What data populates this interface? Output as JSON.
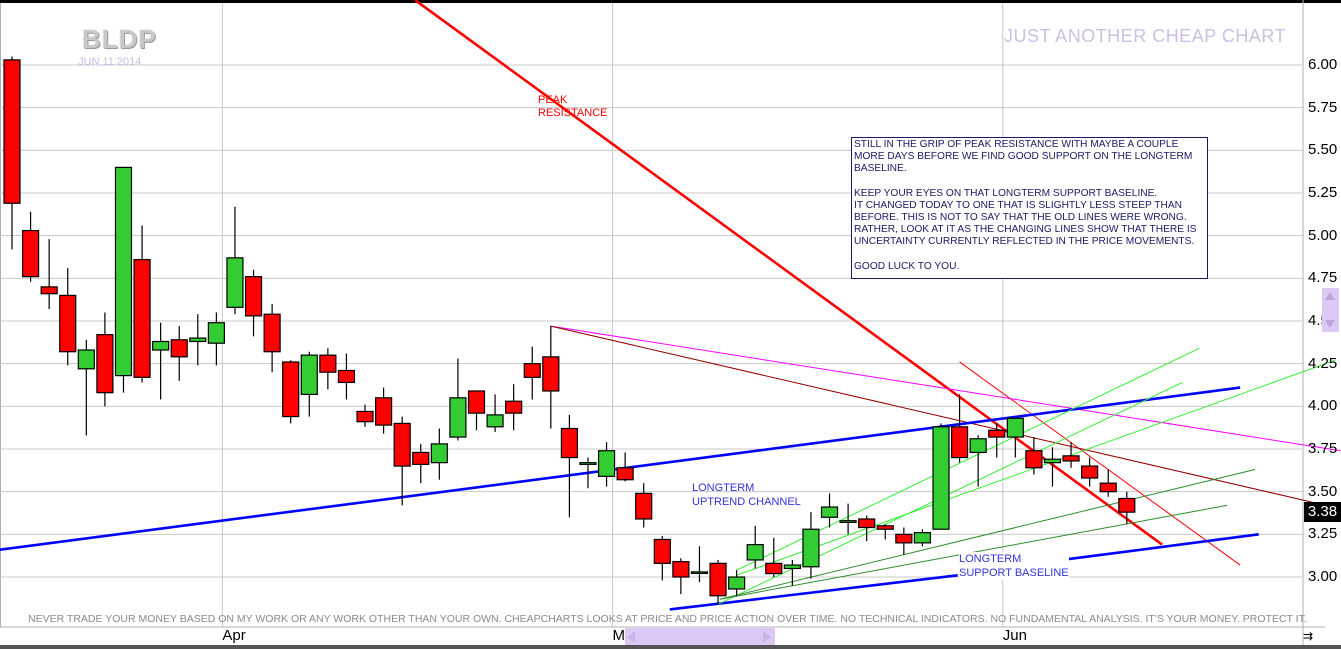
{
  "header": {
    "ticker": "BLDP",
    "date": "JUN 11 2014",
    "brand": "JUST ANOTHER CHEAP CHART"
  },
  "annotations": {
    "peak_resistance": "PEAK\nRESISTANCE",
    "uptrend_channel": "LONGTERM\nUPTREND CHANNEL",
    "support_baseline": "LONGTERM\nSUPPORT BASELINE",
    "note": [
      "STILL IN THE GRIP OF PEAK RESISTANCE WITH MAYBE A COUPLE MORE DAYS BEFORE WE FIND GOOD SUPPORT ON THE LONGTERM BASELINE.",
      "KEEP YOUR EYES ON THAT LONGTERM SUPPORT BASELINE.",
      "IT CHANGED TODAY TO ONE THAT IS SLIGHTLY LESS STEEP THAN BEFORE. THIS IS NOT TO SAY THAT THE OLD LINES WERE WRONG. RATHER, LOOK AT IT AS THE CHANGING LINES SHOW THAT THERE IS UNCERTAINTY CURRENTLY REFLECTED IN THE PRICE MOVEMENTS.",
      "GOOD LUCK TO YOU."
    ],
    "disclaimer": "NEVER TRADE YOUR MONEY BASED ON MY WORK OR ANY WORK OTHER THAN YOUR OWN. CHEAPCHARTS LOOKS AT PRICE AND PRICE ACTION OVER TIME. NO TECHNICAL INDICATORS. NO FUNDAMENTAL ANALYSIS. IT'S YOUR MONEY. PROTECT IT."
  },
  "chart_data": {
    "type": "candlestick",
    "ylim": [
      2.8,
      6.38
    ],
    "y_ticks": [
      "6.00",
      "5.75",
      "5.50",
      "5.25",
      "5.00",
      "4.75",
      "4.50",
      "4.25",
      "4.00",
      "3.75",
      "3.50",
      "3.25",
      "3.00"
    ],
    "x_ticks": [
      {
        "label": "Apr",
        "bar": 11
      },
      {
        "label": "May",
        "bar": 32
      },
      {
        "label": "Jun",
        "bar": 53
      }
    ],
    "last_price": "3.38",
    "grid": true,
    "colors": {
      "up": "#33cc33",
      "down": "#ff0000",
      "grid": "#c8c8c8"
    },
    "candles_ohlc": [
      [
        6.03,
        6.05,
        4.92,
        5.19
      ],
      [
        5.03,
        5.14,
        4.73,
        4.76
      ],
      [
        4.7,
        4.98,
        4.57,
        4.66
      ],
      [
        4.65,
        4.81,
        4.24,
        4.32
      ],
      [
        4.22,
        4.39,
        3.83,
        4.33
      ],
      [
        4.42,
        4.55,
        4.0,
        4.08
      ],
      [
        4.18,
        5.4,
        4.08,
        5.4
      ],
      [
        4.86,
        5.06,
        4.14,
        4.17
      ],
      [
        4.33,
        4.49,
        4.04,
        4.38
      ],
      [
        4.39,
        4.47,
        4.15,
        4.29
      ],
      [
        4.38,
        4.54,
        4.24,
        4.4
      ],
      [
        4.37,
        4.55,
        4.24,
        4.49
      ],
      [
        4.58,
        5.17,
        4.54,
        4.87
      ],
      [
        4.76,
        4.8,
        4.41,
        4.53
      ],
      [
        4.54,
        4.6,
        4.2,
        4.32
      ],
      [
        4.26,
        4.27,
        3.9,
        3.94
      ],
      [
        4.07,
        4.32,
        3.94,
        4.3
      ],
      [
        4.3,
        4.34,
        4.1,
        4.2
      ],
      [
        4.21,
        4.31,
        4.04,
        4.14
      ],
      [
        3.97,
        4.01,
        3.88,
        3.91
      ],
      [
        4.05,
        4.11,
        3.84,
        3.89
      ],
      [
        3.9,
        3.94,
        3.42,
        3.65
      ],
      [
        3.73,
        3.78,
        3.55,
        3.66
      ],
      [
        3.67,
        3.87,
        3.57,
        3.78
      ],
      [
        3.82,
        4.28,
        3.8,
        4.05
      ],
      [
        4.09,
        4.09,
        3.86,
        3.96
      ],
      [
        3.88,
        4.07,
        3.85,
        3.95
      ],
      [
        4.03,
        4.13,
        3.86,
        3.96
      ],
      [
        4.25,
        4.35,
        4.04,
        4.17
      ],
      [
        4.29,
        4.47,
        3.87,
        4.09
      ],
      [
        3.87,
        3.95,
        3.35,
        3.7
      ],
      [
        3.66,
        3.7,
        3.52,
        3.67
      ],
      [
        3.59,
        3.79,
        3.53,
        3.74
      ],
      [
        3.64,
        3.73,
        3.56,
        3.57
      ],
      [
        3.49,
        3.55,
        3.29,
        3.34
      ],
      [
        3.22,
        3.24,
        2.98,
        3.08
      ],
      [
        3.09,
        3.11,
        2.9,
        3.0
      ],
      [
        3.03,
        3.18,
        2.97,
        3.03
      ],
      [
        3.08,
        3.1,
        2.84,
        2.89
      ],
      [
        2.93,
        3.04,
        2.89,
        3.0
      ],
      [
        3.1,
        3.3,
        3.05,
        3.19
      ],
      [
        3.08,
        3.23,
        3.0,
        3.02
      ],
      [
        3.05,
        3.1,
        2.95,
        3.07
      ],
      [
        3.06,
        3.38,
        2.99,
        3.28
      ],
      [
        3.35,
        3.49,
        3.29,
        3.41
      ],
      [
        3.32,
        3.43,
        3.25,
        3.33
      ],
      [
        3.34,
        3.36,
        3.21,
        3.29
      ],
      [
        3.3,
        3.31,
        3.22,
        3.28
      ],
      [
        3.25,
        3.29,
        3.13,
        3.2
      ],
      [
        3.2,
        3.28,
        3.18,
        3.26
      ],
      [
        3.28,
        3.9,
        3.28,
        3.88
      ],
      [
        3.88,
        4.07,
        3.67,
        3.7
      ],
      [
        3.73,
        3.83,
        3.53,
        3.81
      ],
      [
        3.86,
        3.9,
        3.7,
        3.82
      ],
      [
        3.82,
        3.93,
        3.7,
        3.93
      ],
      [
        3.74,
        3.82,
        3.6,
        3.64
      ],
      [
        3.67,
        3.76,
        3.53,
        3.69
      ],
      [
        3.71,
        3.79,
        3.64,
        3.68
      ],
      [
        3.65,
        3.7,
        3.53,
        3.58
      ],
      [
        3.55,
        3.63,
        3.47,
        3.5
      ],
      [
        3.46,
        3.5,
        3.31,
        3.38
      ]
    ],
    "trendlines": [
      {
        "kind": "peak-resistance",
        "color": "#ff0000",
        "from": [
          21.7,
          6.38
        ],
        "to": [
          61.9,
          3.19
        ],
        "weight": "heavy"
      },
      {
        "kind": "resistance-thin",
        "color": "#ff0000",
        "from": [
          51.0,
          4.26
        ],
        "to": [
          66.1,
          3.07
        ],
        "weight": "thin"
      },
      {
        "kind": "resistance-magenta",
        "color": "#ff00ff",
        "from": [
          29.0,
          4.47
        ],
        "to": [
          71.5,
          3.74
        ],
        "weight": "thin"
      },
      {
        "kind": "resistance-darkred",
        "color": "#990000",
        "from": [
          29.0,
          4.47
        ],
        "to": [
          71.5,
          3.4
        ],
        "weight": "thin"
      },
      {
        "kind": "uptrend-channel-upper",
        "color": "#0000ff",
        "from": [
          -0.65,
          3.16
        ],
        "to": [
          66.1,
          4.11
        ],
        "weight": "heavy"
      },
      {
        "kind": "support-baseline-old",
        "color": "#0000ff",
        "from": [
          35.4,
          2.81
        ],
        "to": [
          50.9,
          3.01
        ],
        "weight": "heavy"
      },
      {
        "kind": "support-baseline-new",
        "color": "#0000ff",
        "from": [
          56.5,
          3.1
        ],
        "to": [
          67.1,
          3.25
        ],
        "weight": "heavy"
      },
      {
        "kind": "fan-green-1",
        "color": "#33ee33",
        "from": [
          39.0,
          3.04
        ],
        "to": [
          63.9,
          4.34
        ],
        "weight": "thin"
      },
      {
        "kind": "fan-green-2",
        "color": "#33ee33",
        "from": [
          38.0,
          2.84
        ],
        "to": [
          63.0,
          4.14
        ],
        "weight": "thin"
      },
      {
        "kind": "fan-green-3",
        "color": "#33ee33",
        "from": [
          39.0,
          3.01
        ],
        "to": [
          71.2,
          4.27
        ],
        "weight": "thin"
      },
      {
        "kind": "fan-darkgreen-1",
        "color": "#2e8b2e",
        "from": [
          38.1,
          2.87
        ],
        "to": [
          66.9,
          3.63
        ],
        "weight": "thin"
      },
      {
        "kind": "fan-darkgreen-2",
        "color": "#2e8b2e",
        "from": [
          38.1,
          2.87
        ],
        "to": [
          65.4,
          3.42
        ],
        "weight": "thin"
      }
    ]
  }
}
